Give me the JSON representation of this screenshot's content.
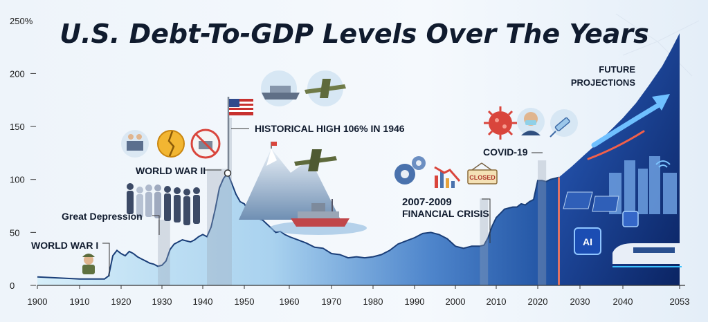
{
  "chart_data": {
    "type": "area",
    "title": "U.S. Debt-To-GDP Levels Over The Years",
    "y_tick_labels": [
      "250%",
      "200",
      "150",
      "100",
      "50",
      "0"
    ],
    "x_tick_labels": [
      "1900",
      "1910",
      "1920",
      "1930",
      "1940",
      "1950",
      "1960",
      "1970",
      "1980",
      "1990",
      "2000",
      "2010",
      "2020",
      "2030",
      "2040",
      "2053"
    ],
    "ylim": [
      0,
      250
    ],
    "grid": false,
    "series": [
      {
        "values": [
          [
            1900,
            8
          ],
          [
            1905,
            7
          ],
          [
            1910,
            6
          ],
          [
            1916,
            6
          ],
          [
            1917,
            9
          ],
          [
            1918,
            28
          ],
          [
            1919,
            33
          ],
          [
            1920,
            30
          ],
          [
            1921,
            28
          ],
          [
            1922,
            32
          ],
          [
            1923,
            30
          ],
          [
            1924,
            27
          ],
          [
            1925,
            25
          ],
          [
            1926,
            23
          ],
          [
            1927,
            21
          ],
          [
            1928,
            20
          ],
          [
            1929,
            18
          ],
          [
            1930,
            19
          ],
          [
            1931,
            23
          ],
          [
            1932,
            34
          ],
          [
            1933,
            39
          ],
          [
            1934,
            41
          ],
          [
            1935,
            43
          ],
          [
            1936,
            42
          ],
          [
            1937,
            41
          ],
          [
            1938,
            43
          ],
          [
            1939,
            46
          ],
          [
            1940,
            48
          ],
          [
            1941,
            46
          ],
          [
            1942,
            55
          ],
          [
            1943,
            72
          ],
          [
            1944,
            92
          ],
          [
            1945,
            101
          ],
          [
            1946,
            106
          ],
          [
            1947,
            96
          ],
          [
            1948,
            86
          ],
          [
            1949,
            79
          ],
          [
            1950,
            77
          ],
          [
            1951,
            70
          ],
          [
            1952,
            66
          ],
          [
            1953,
            63
          ],
          [
            1954,
            62
          ],
          [
            1955,
            58
          ],
          [
            1956,
            54
          ],
          [
            1957,
            50
          ],
          [
            1958,
            51
          ],
          [
            1959,
            48
          ],
          [
            1960,
            46
          ],
          [
            1962,
            43
          ],
          [
            1964,
            40
          ],
          [
            1966,
            36
          ],
          [
            1968,
            35
          ],
          [
            1970,
            30
          ],
          [
            1972,
            29
          ],
          [
            1974,
            26
          ],
          [
            1976,
            27
          ],
          [
            1978,
            26
          ],
          [
            1980,
            27
          ],
          [
            1982,
            29
          ],
          [
            1984,
            33
          ],
          [
            1986,
            39
          ],
          [
            1988,
            42
          ],
          [
            1990,
            45
          ],
          [
            1992,
            49
          ],
          [
            1994,
            50
          ],
          [
            1996,
            48
          ],
          [
            1998,
            44
          ],
          [
            2000,
            37
          ],
          [
            2002,
            35
          ],
          [
            2004,
            37
          ],
          [
            2006,
            37
          ],
          [
            2007,
            38
          ],
          [
            2008,
            45
          ],
          [
            2009,
            56
          ],
          [
            2010,
            64
          ],
          [
            2011,
            68
          ],
          [
            2012,
            72
          ],
          [
            2013,
            73
          ],
          [
            2014,
            74
          ],
          [
            2015,
            74
          ],
          [
            2016,
            77
          ],
          [
            2017,
            76
          ],
          [
            2018,
            79
          ],
          [
            2019,
            81
          ],
          [
            2020,
            99
          ],
          [
            2021,
            99
          ],
          [
            2022,
            98
          ],
          [
            2023,
            100
          ],
          [
            2024,
            101
          ],
          [
            2025,
            102
          ]
        ]
      },
      {
        "values": [
          [
            2025,
            102
          ],
          [
            2028,
            112
          ],
          [
            2031,
            123
          ],
          [
            2034,
            134
          ],
          [
            2037,
            146
          ],
          [
            2040,
            158
          ],
          [
            2043,
            172
          ],
          [
            2046,
            189
          ],
          [
            2049,
            207
          ],
          [
            2051,
            222
          ],
          [
            2053,
            238
          ]
        ]
      }
    ],
    "annotations": [
      {
        "x": 1918,
        "text": "WORLD WAR I"
      },
      {
        "x": 1929,
        "text": "Great Depression"
      },
      {
        "x": 1942,
        "text": "WORLD WAR II"
      },
      {
        "x": 1946,
        "text": "HISTORICAL HIGH 106% IN 1946"
      },
      {
        "x": 2008,
        "text": "2007-2009"
      },
      {
        "x": 2008,
        "text": "FINANCIAL CRISIS"
      },
      {
        "x": 2020,
        "text": "COVID-19"
      },
      {
        "x": 2045,
        "text": "FUTURE"
      },
      {
        "x": 2045,
        "text": "PROJECTIONS"
      }
    ],
    "closed_sign": "CLOSED",
    "ai_chip": "AI",
    "icons": [
      "soldier-icon",
      "crowd-icon",
      "factory-icon",
      "broken-coin-icon",
      "no-factory-icon",
      "flag-icon",
      "mountain-icon",
      "ship-icon",
      "bomber-plane-icon",
      "gears-icon",
      "falling-chart-icon",
      "closed-sign-icon",
      "virus-icon",
      "masked-person-icon",
      "syringe-icon",
      "arrow-up-icon",
      "solar-panel-icon",
      "ai-chip-icon",
      "wifi-icon",
      "train-icon",
      "city-skyline-icon"
    ],
    "colors": {
      "area_dark": "#1e4f9e",
      "area_light": "#cfe8f7",
      "line": "#1a3e78",
      "projection": "#0d2e7c",
      "accent": "#f2604a"
    }
  }
}
